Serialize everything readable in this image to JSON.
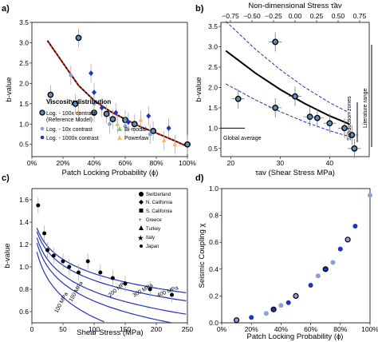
{
  "panels": {
    "a": "a)",
    "b": "b)",
    "c": "c)",
    "d": "d)"
  },
  "chart_data": [
    {
      "id": "a",
      "type": "scatter",
      "xlabel": "Patch Locking Probability (ϕ)",
      "ylabel": "b-value",
      "xlim": [
        0,
        1
      ],
      "ylim": [
        0.2,
        3.5
      ],
      "xticks": [
        "0%",
        "20%",
        "40%",
        "60%",
        "80%",
        "100%"
      ],
      "yticks": [
        "0.5",
        "1.0",
        "1.5",
        "2.0",
        "2.5",
        "3.0",
        "3.5"
      ],
      "legend": {
        "title": "Viscosity distribution",
        "items": [
          "Log. - 100x contrast",
          "(Reference Model)",
          "Log. - 10x contrast",
          "Log. - 1000x contrast",
          "Bi-modal",
          "Powerlaw"
        ]
      },
      "colors": {
        "reference": "#5b8fbf",
        "c10": "#8aa0d8",
        "c1000": "#2233bb",
        "bimodal": "#7dc36a",
        "powerlaw": "#f5b870",
        "fit": "#000000",
        "fit2": "#c0392b"
      },
      "series": [
        {
          "name": "Log. - 100x contrast",
          "points": [
            [
              0.12,
              1.72
            ],
            [
              0.3,
              3.12
            ],
            [
              0.28,
              1.5
            ],
            [
              0.4,
              1.28
            ],
            [
              0.48,
              1.25
            ],
            [
              0.52,
              1.12
            ],
            [
              0.6,
              1.1
            ],
            [
              0.66,
              1.0
            ],
            [
              0.78,
              0.83
            ],
            [
              1.0,
              0.5
            ]
          ]
        },
        {
          "name": "Log. - 10x contrast",
          "points": [
            [
              0.25,
              2.2
            ],
            [
              0.4,
              1.5
            ],
            [
              0.5,
              1.0
            ],
            [
              0.6,
              0.95
            ],
            [
              0.76,
              0.75
            ]
          ]
        },
        {
          "name": "Log. - 1000x contrast",
          "points": [
            [
              0.38,
              2.25
            ],
            [
              0.4,
              1.78
            ],
            [
              0.45,
              1.4
            ],
            [
              0.54,
              1.28
            ],
            [
              0.62,
              1.05
            ],
            [
              0.75,
              1.2
            ],
            [
              0.88,
              0.9
            ]
          ]
        },
        {
          "name": "Powerlaw",
          "points": [
            [
              0.3,
              1.3
            ],
            [
              0.55,
              1.0
            ],
            [
              0.7,
              1.1
            ],
            [
              0.85,
              0.6
            ],
            [
              0.92,
              0.5
            ]
          ]
        }
      ],
      "fit": [
        [
          0.1,
          3.05
        ],
        [
          0.2,
          2.5
        ],
        [
          0.3,
          1.95
        ],
        [
          0.4,
          1.58
        ],
        [
          0.5,
          1.32
        ],
        [
          0.6,
          1.12
        ],
        [
          0.7,
          0.93
        ],
        [
          0.8,
          0.78
        ],
        [
          0.9,
          0.62
        ],
        [
          1.0,
          0.45
        ]
      ]
    },
    {
      "id": "b",
      "type": "scatter",
      "xlabel": "τav (Shear Stress MPa)",
      "top_label": "Non-dimensional Stress τ̃av",
      "ylabel": "b-value",
      "xlim": [
        18,
        48
      ],
      "ylim": [
        0.3,
        3.6
      ],
      "xticks": [
        "20",
        "30",
        "40"
      ],
      "top_ticks": [
        "−0.75",
        "−0.50",
        "−0.25",
        "0.00",
        "0.25",
        "0.50",
        "0.75"
      ],
      "yticks": [
        "0.5",
        "1.0",
        "1.5",
        "2.0",
        "2.5",
        "3.0",
        "3.5"
      ],
      "annotations": [
        "Global average",
        "Subduction zones",
        "Literature range"
      ],
      "points": [
        [
          21.5,
          1.72
        ],
        [
          29,
          3.12
        ],
        [
          29,
          1.5
        ],
        [
          33,
          1.78
        ],
        [
          36,
          1.28
        ],
        [
          37.5,
          1.25
        ],
        [
          40,
          1.12
        ],
        [
          43,
          1.0
        ],
        [
          44.5,
          0.83
        ],
        [
          45,
          0.5
        ]
      ],
      "fit": [
        [
          19,
          2.9
        ],
        [
          25,
          2.35
        ],
        [
          30,
          1.95
        ],
        [
          35,
          1.6
        ],
        [
          40,
          1.3
        ],
        [
          44,
          1.1
        ]
      ]
    },
    {
      "id": "c",
      "type": "scatter",
      "xlabel": "Shear Stress (MPa)",
      "ylabel": "b-value",
      "xlim": [
        0,
        250
      ],
      "ylim": [
        0.5,
        1.7
      ],
      "xticks": [
        "0",
        "50",
        "100",
        "150",
        "200",
        "250"
      ],
      "yticks": [
        "0.6",
        "0.8",
        "1.0",
        "1.2",
        "1.4",
        "1.6"
      ],
      "legend": {
        "items": [
          "Switzerland",
          "N. California",
          "S. California",
          "Greece",
          "Turkey",
          "Italy",
          "Japan"
        ]
      },
      "curve_labels": [
        "100 MPa",
        "150 MPa",
        "200 MPa",
        "300 MPa",
        "400 MPa"
      ],
      "points": [
        [
          10,
          1.55
        ],
        [
          20,
          1.3
        ],
        [
          25,
          1.15
        ],
        [
          35,
          1.1
        ],
        [
          50,
          1.05
        ],
        [
          60,
          1.0
        ],
        [
          75,
          0.95
        ],
        [
          90,
          1.05
        ],
        [
          110,
          0.95
        ],
        [
          130,
          0.9
        ],
        [
          150,
          0.85
        ],
        [
          190,
          0.8
        ],
        [
          225,
          0.75
        ]
      ]
    },
    {
      "id": "d",
      "type": "scatter",
      "xlabel": "Patch Locking Probability (ϕ)",
      "ylabel": "Seismic Coupling χ",
      "xlim": [
        0,
        1
      ],
      "ylim": [
        0,
        1
      ],
      "xticks": [
        "0%",
        "20%",
        "40%",
        "60%",
        "80%",
        "100%"
      ],
      "yticks": [
        "0.0",
        "0.2",
        "0.4",
        "0.6",
        "0.8",
        "1.0"
      ],
      "points": [
        [
          0.1,
          0.02
        ],
        [
          0.2,
          0.04
        ],
        [
          0.3,
          0.07
        ],
        [
          0.35,
          0.1
        ],
        [
          0.4,
          0.13
        ],
        [
          0.45,
          0.15
        ],
        [
          0.5,
          0.2
        ],
        [
          0.6,
          0.28
        ],
        [
          0.65,
          0.35
        ],
        [
          0.7,
          0.4
        ],
        [
          0.75,
          0.45
        ],
        [
          0.8,
          0.55
        ],
        [
          0.85,
          0.62
        ],
        [
          0.9,
          0.72
        ],
        [
          1.0,
          0.95
        ]
      ]
    }
  ]
}
